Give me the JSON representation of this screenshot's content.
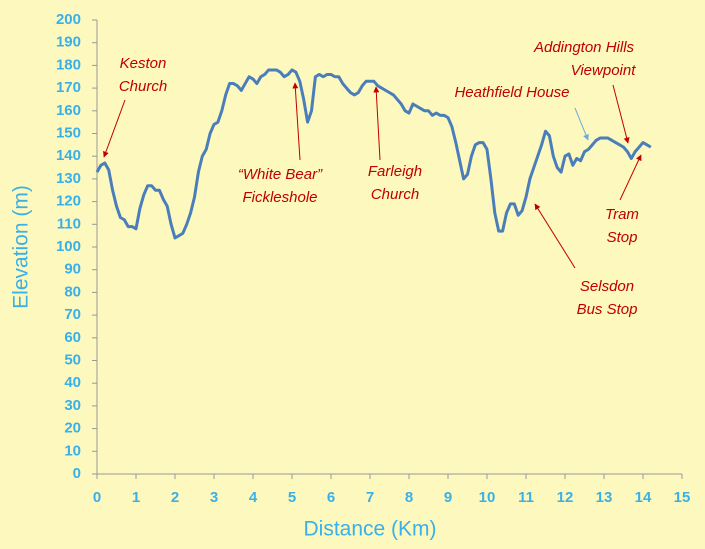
{
  "chart_data": {
    "type": "line",
    "x_label": "Distance (Km)",
    "y_label": "Elevation (m)",
    "x": [
      0,
      0.1,
      0.2,
      0.3,
      0.4,
      0.5,
      0.6,
      0.7,
      0.8,
      0.9,
      1,
      1.1,
      1.2,
      1.3,
      1.4,
      1.5,
      1.6,
      1.7,
      1.8,
      1.9,
      2,
      2.1,
      2.2,
      2.3,
      2.4,
      2.5,
      2.6,
      2.7,
      2.8,
      2.9,
      3,
      3.1,
      3.2,
      3.3,
      3.4,
      3.5,
      3.6,
      3.7,
      3.8,
      3.9,
      4,
      4.1,
      4.2,
      4.3,
      4.4,
      4.5,
      4.6,
      4.7,
      4.8,
      4.9,
      5,
      5.1,
      5.2,
      5.3,
      5.4,
      5.5,
      5.6,
      5.7,
      5.8,
      5.9,
      6,
      6.1,
      6.2,
      6.3,
      6.4,
      6.5,
      6.6,
      6.7,
      6.8,
      6.9,
      7,
      7.1,
      7.2,
      7.3,
      7.4,
      7.5,
      7.6,
      7.7,
      7.8,
      7.9,
      8,
      8.1,
      8.2,
      8.3,
      8.4,
      8.5,
      8.6,
      8.7,
      8.8,
      8.9,
      9,
      9.1,
      9.2,
      9.3,
      9.4,
      9.5,
      9.6,
      9.7,
      9.8,
      9.9,
      10,
      10.1,
      10.2,
      10.3,
      10.4,
      10.5,
      10.6,
      10.7,
      10.8,
      10.9,
      11,
      11.1,
      11.2,
      11.3,
      11.4,
      11.5,
      11.6,
      11.7,
      11.8,
      11.9,
      12,
      12.1,
      12.2,
      12.3,
      12.4,
      12.5,
      12.6,
      12.7,
      12.8,
      12.9,
      13,
      13.1,
      13.2,
      13.3,
      13.4,
      13.5,
      13.6,
      13.7,
      13.8,
      13.9,
      14,
      14.1,
      14.2
    ],
    "series": [
      {
        "color": "#4a7ebb",
        "values": [
          133,
          136,
          137,
          134,
          125,
          118,
          113,
          112,
          109,
          109,
          108,
          117,
          123,
          127,
          127,
          125,
          125,
          121,
          118,
          110,
          104,
          105,
          106,
          110,
          115,
          122,
          133,
          140,
          143,
          150,
          154,
          155,
          160,
          167,
          172,
          172,
          171,
          169,
          172,
          175,
          174,
          172,
          175,
          176,
          178,
          178,
          178,
          177,
          175,
          176,
          178,
          177,
          173,
          165,
          155,
          160,
          175,
          176,
          175,
          176,
          176,
          175,
          175,
          172,
          170,
          168,
          167,
          168,
          171,
          173,
          173,
          173,
          171,
          170,
          169,
          168,
          167,
          165,
          163,
          160,
          159,
          163,
          162,
          161,
          160,
          160,
          158,
          159,
          158,
          158,
          157,
          153,
          146,
          138,
          130,
          132,
          140,
          145,
          146,
          146,
          143,
          130,
          115,
          107,
          107,
          115,
          119,
          119,
          114,
          116,
          122,
          130,
          135,
          140,
          145,
          151,
          149,
          140,
          135,
          133,
          140,
          141,
          136,
          139,
          138,
          142,
          143,
          145,
          147,
          148,
          148,
          148,
          147,
          146,
          145,
          144,
          142,
          139,
          142,
          144,
          146,
          145,
          144
        ]
      }
    ],
    "xlim": [
      0,
      15
    ],
    "ylim": [
      0,
      200
    ],
    "xticks": [
      0,
      1,
      2,
      3,
      4,
      5,
      6,
      7,
      8,
      9,
      10,
      11,
      12,
      13,
      14,
      15
    ],
    "yticks": [
      0,
      10,
      20,
      30,
      40,
      50,
      60,
      70,
      80,
      90,
      100,
      110,
      120,
      130,
      140,
      150,
      160,
      170,
      180,
      190,
      200
    ],
    "annotations": [
      {
        "text": [
          "Keston",
          "Church"
        ]
      },
      {
        "text": [
          "“White Bear”",
          "Fickleshole"
        ]
      },
      {
        "text": [
          "Farleigh",
          "Church"
        ]
      },
      {
        "text": [
          "Heathfield House"
        ]
      },
      {
        "text": [
          "Addington Hills",
          "Viewpoint"
        ]
      },
      {
        "text": [
          "Tram",
          "Stop"
        ]
      },
      {
        "text": [
          "Selsdon",
          "Bus Stop"
        ]
      }
    ]
  }
}
